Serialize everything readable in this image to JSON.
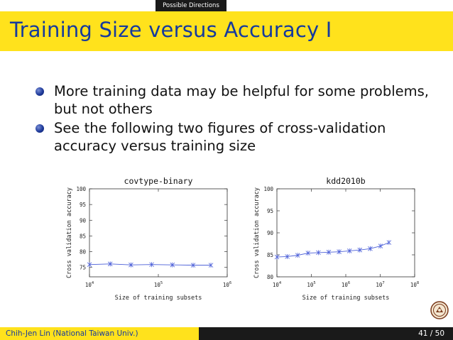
{
  "header": {
    "section_tab": "Possible Directions",
    "title": "Training Size versus Accuracy I"
  },
  "bullets": [
    "More training data may be helpful for some problems, but not others",
    "See the following two figures of cross-validation accuracy versus training size"
  ],
  "footer": {
    "author": "Chih-Jen Lin  (National Taiwan Univ.)",
    "page": "41 / 50"
  },
  "logo": {
    "icon": "university-seal-icon"
  },
  "colors": {
    "title_band": "#ffe21c",
    "title_text": "#153a9e",
    "series": "#4b5fd8"
  },
  "chart_data": [
    {
      "type": "line",
      "title": "covtype-binary",
      "xlabel": "Size of training subsets",
      "ylabel": "Cross validation accuracy",
      "xscale": "log",
      "xlim": [
        10000,
        1000000
      ],
      "ylim": [
        72,
        100
      ],
      "xticks": [
        {
          "value": 10000,
          "base": "10",
          "exp": "4"
        },
        {
          "value": 100000,
          "base": "10",
          "exp": "5"
        },
        {
          "value": 1000000,
          "base": "10",
          "exp": "6"
        }
      ],
      "yticks": [
        75,
        80,
        85,
        90,
        95,
        100
      ],
      "series": [
        {
          "x": [
            10000,
            20000,
            40000,
            80000,
            160000,
            320000,
            580000
          ],
          "y": [
            75.9,
            76.1,
            75.8,
            75.9,
            75.8,
            75.7,
            75.7
          ]
        }
      ]
    },
    {
      "type": "line",
      "title": "kdd2010b",
      "xlabel": "Size of training subsets",
      "ylabel": "Cross validation accuracy",
      "xscale": "log",
      "xlim": [
        10000,
        100000000
      ],
      "ylim": [
        80,
        100
      ],
      "xticks": [
        {
          "value": 10000,
          "base": "10",
          "exp": "4"
        },
        {
          "value": 100000,
          "base": "10",
          "exp": "5"
        },
        {
          "value": 1000000,
          "base": "10",
          "exp": "6"
        },
        {
          "value": 10000000,
          "base": "10",
          "exp": "7"
        },
        {
          "value": 100000000,
          "base": "10",
          "exp": "8"
        }
      ],
      "yticks": [
        80,
        85,
        90,
        95,
        100
      ],
      "series": [
        {
          "x": [
            10000,
            20000,
            40000,
            80000,
            160000,
            320000,
            640000,
            1280000,
            2560000,
            5120000,
            10240000,
            18000000
          ],
          "y": [
            84.5,
            84.6,
            84.9,
            85.4,
            85.5,
            85.6,
            85.7,
            85.9,
            86.1,
            86.4,
            87.0,
            87.8
          ]
        }
      ]
    }
  ]
}
